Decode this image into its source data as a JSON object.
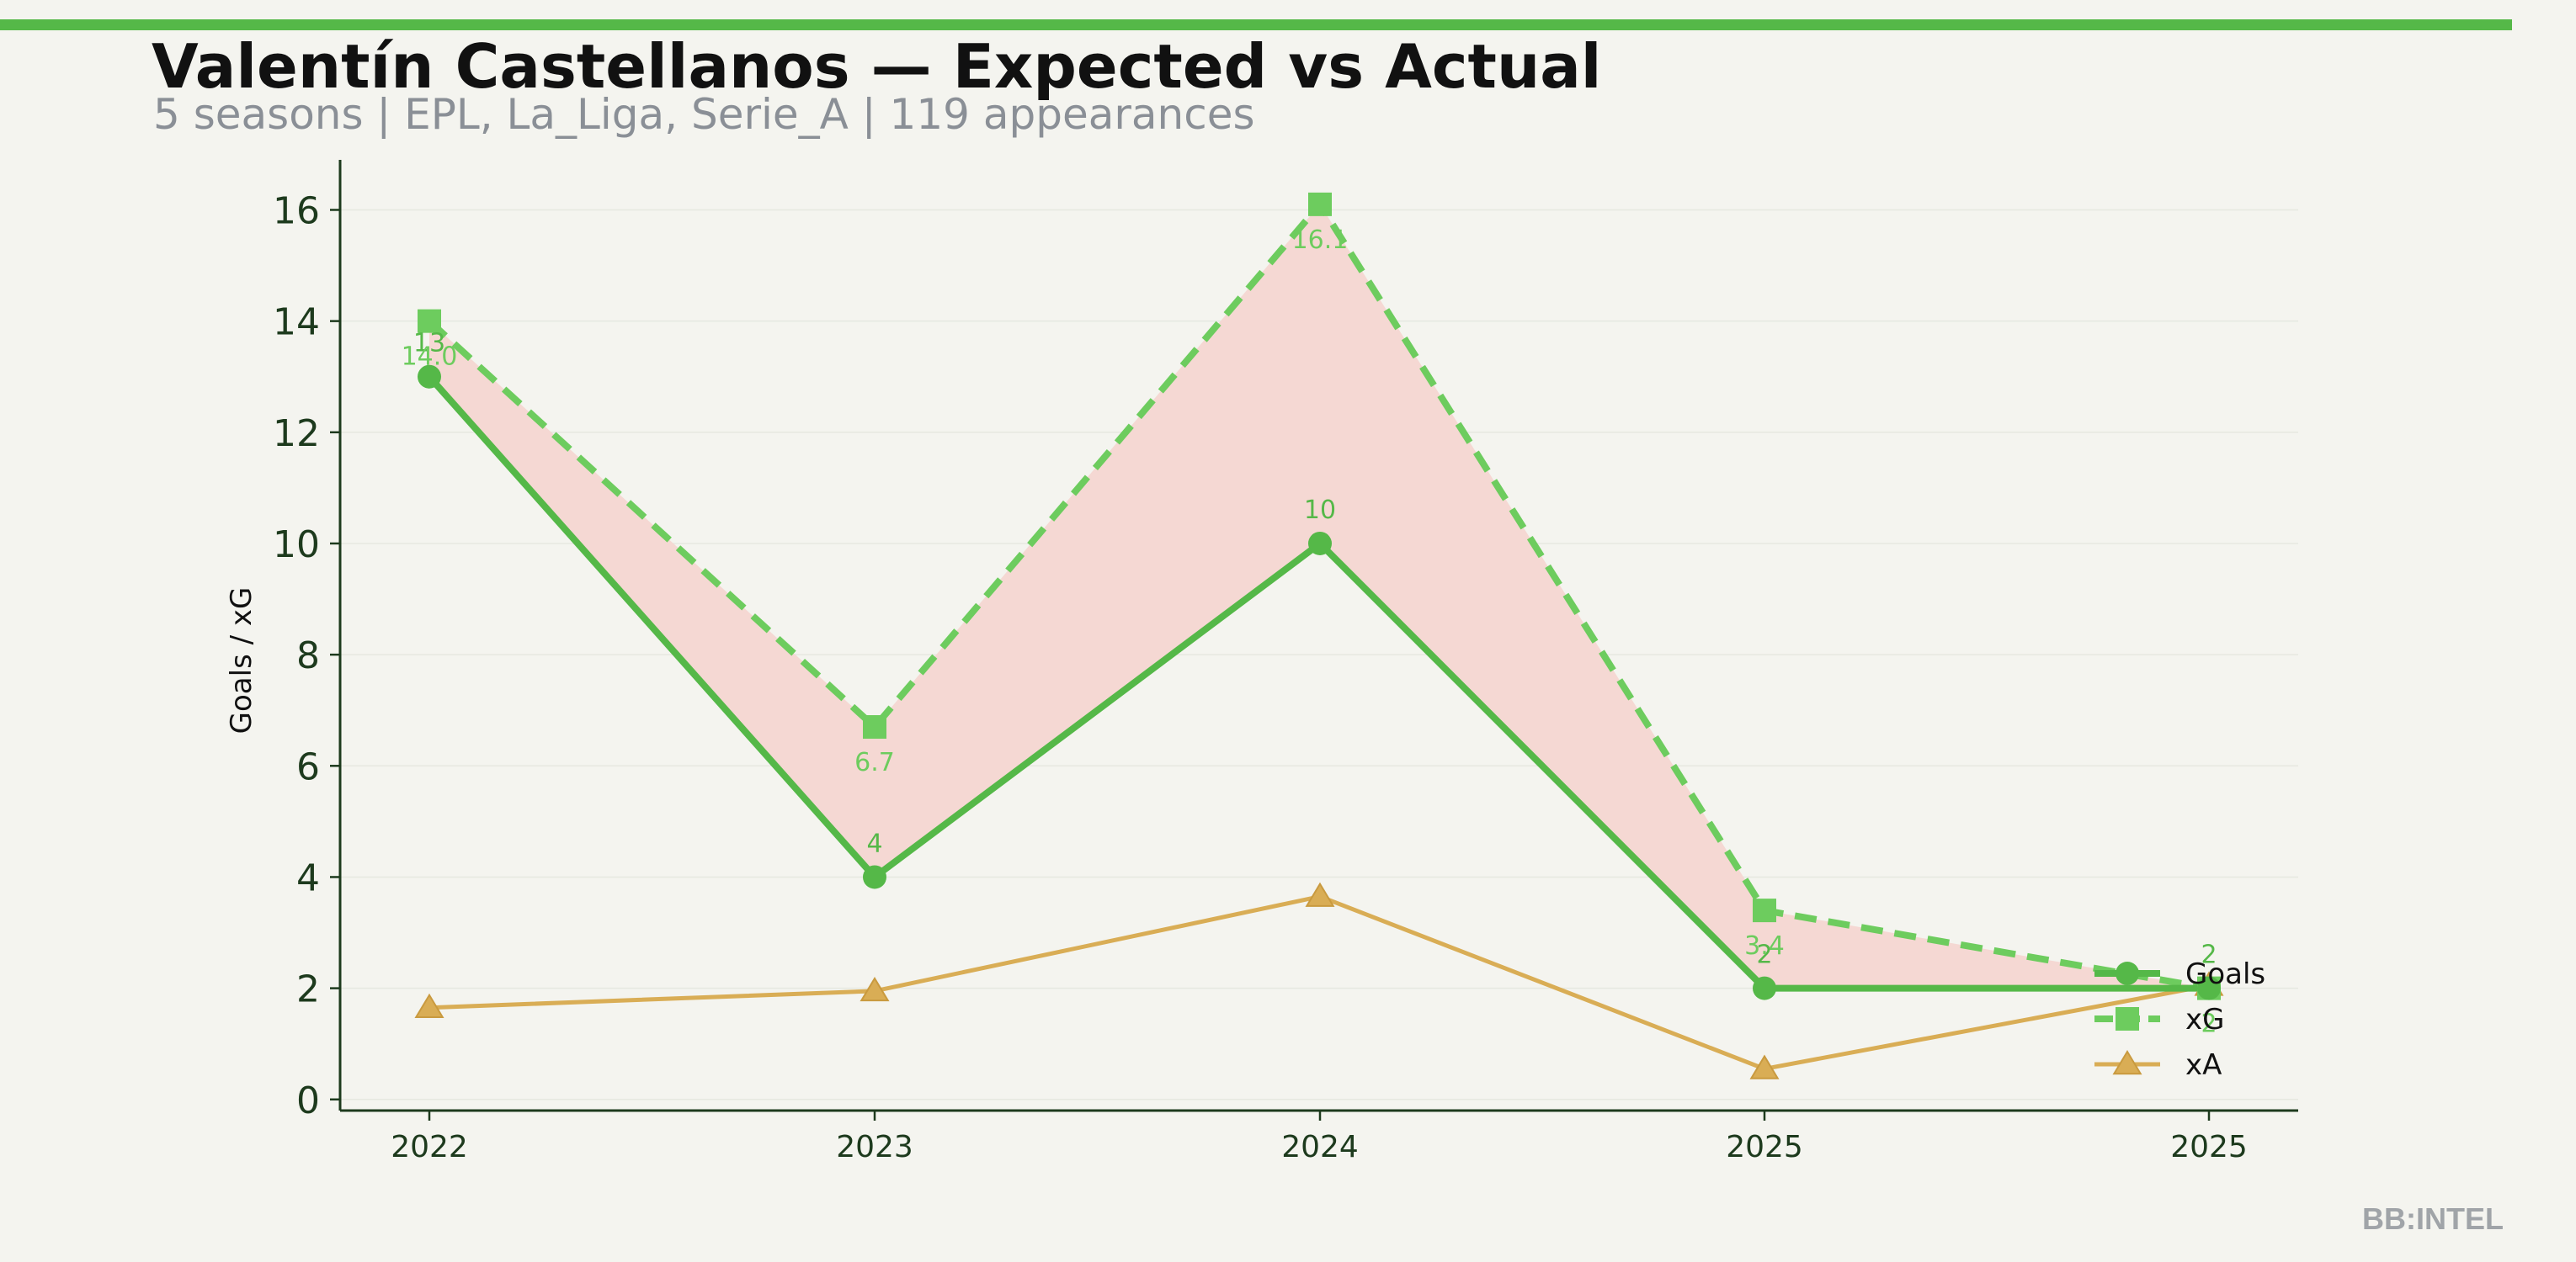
{
  "header": {
    "title": "Valentín Castellanos — Expected vs Actual",
    "subtitle": "5 seasons | EPL, La_Liga, Serie_A | 119 appearances"
  },
  "watermark": "BB:INTEL",
  "colors": {
    "accent": "#55b848",
    "goals": "#55b848",
    "xg": "#6dcc5e",
    "xa": "#d9ad55",
    "shade": "#f5d8d3",
    "background": "#f4f4ef"
  },
  "chart_data": {
    "type": "line",
    "categories": [
      "2022",
      "2023",
      "2024",
      "2025",
      "2025"
    ],
    "ylabel": "Goals / xG",
    "xlabel": "",
    "ylim": [
      -0.2,
      16.9
    ],
    "yticks": [
      0,
      2,
      4,
      6,
      8,
      10,
      12,
      14,
      16
    ],
    "grid": true,
    "legend_position": "bottom-right",
    "series": [
      {
        "name": "Goals",
        "key": "goals",
        "values": [
          13,
          4,
          10,
          2,
          2
        ],
        "labels": [
          "13",
          "4",
          "10",
          "2",
          "2"
        ],
        "marker": "circle",
        "style": "solid"
      },
      {
        "name": "xG",
        "key": "xg",
        "values": [
          14.0,
          6.7,
          16.1,
          3.4,
          2.0
        ],
        "labels": [
          "14.0",
          "6.7",
          "16.1",
          "3.4",
          "2"
        ],
        "marker": "square",
        "style": "dashed"
      },
      {
        "name": "xA",
        "key": "xa",
        "values": [
          1.65,
          1.95,
          3.65,
          0.55,
          2.05
        ],
        "marker": "triangle",
        "style": "solid"
      }
    ]
  }
}
